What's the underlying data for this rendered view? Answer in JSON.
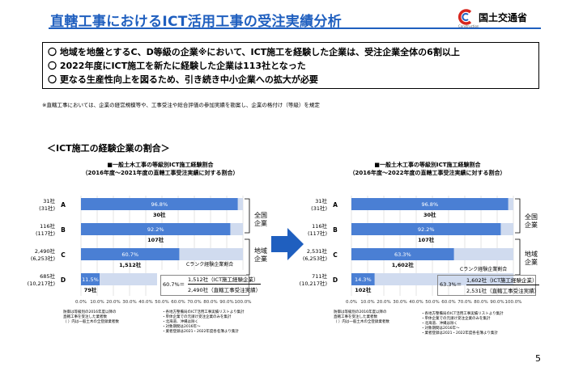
{
  "header": {
    "title": "直轄工事におけるICT活用工事の受注実績分析",
    "ministry_name": "国土交通省",
    "logo_subtext": "Construction",
    "accent_color": "#1f5fbf"
  },
  "summary": {
    "lines": [
      "〇 地域を地盤とするC、D等級の企業※において、ICT施工を経験した企業は、受注企業全体の6割以上",
      "〇 2022年度にICT施工を新たに経験した企業は113社となった",
      "〇 更なる生産性向上を図るため、引き続き中小企業への拡大が必要"
    ]
  },
  "footnote": "※直轄工事においては、企業の経営規模等や、工事受注や総合評価の参加実績を勘案し、企業の格付け（等級）を規定",
  "section_heading": "＜ICT施工の経験企業の割合＞",
  "charts_meta": {
    "left": {
      "title_line1": "■一般土木工事の等級別ICT施工経験割合",
      "title_line2": "（2016年度～2021年度の直轄工事受注実績に対する割合）",
      "legend_label": "Cランク経験企業割合",
      "frac_value": "60.7%＝",
      "frac_num": "1,512社（ICT施工経験企業）",
      "frac_den": "2,490社（直轄工事受注実績）",
      "bracket_national": "全国\n企業",
      "bracket_regional": "地域\n企業",
      "notes_left": [
        "防御は等級別の2016年度以降の",
        "直轄工事を受注した業者数",
        "（ ）内は一般土木の全登録業者数"
      ],
      "notes_right": [
        "・各地方整備局のICT活用工事実績リストより集計",
        "・単体企業での元請け受注企業のみを集計",
        "・北海道、沖縄は除く",
        "・対象期間は2016年～",
        "・業者登録は2021・2022年度各名簿より集計"
      ]
    },
    "right": {
      "title_line1": "■一般土木工事の等級別ICT施工経験割合",
      "title_line2": "（2016年度～2022年度の直轄工事受注実績に対する割合）",
      "legend_label": "Cランク経験企業割合",
      "frac_value": "63.3%＝",
      "frac_num": "1,602社（ICT施工経験企業）",
      "frac_den": "2,531社（直轄工事受注実績）",
      "bracket_national": "全国\n企業",
      "bracket_regional": "地域\n企業",
      "notes_left": [
        "防御は等級別の2016年度以降の",
        "直轄工事を受注した業者数",
        "（ ）内は一般土木の全登録業者数"
      ],
      "notes_right": [
        "・各地方整備局のICT活用工事実績リストより集計",
        "・単体企業での元請け受注企業のみを集計",
        "・北海道、沖縄は除く",
        "・対象期間は2016年～",
        "・業者登録は2021・2022年度各名簿より集計"
      ]
    }
  },
  "chart_data": [
    {
      "type": "bar",
      "orientation": "horizontal",
      "categories": [
        "A",
        "B",
        "C",
        "D"
      ],
      "category_counts": [
        "31社\n(31社)",
        "116社\n(117社)",
        "2,490社\n(6,253社)",
        "685社\n(10,217社)"
      ],
      "values": [
        96.8,
        92.2,
        60.7,
        11.5
      ],
      "value_labels": [
        "96.8%",
        "92.2%",
        "60.7%",
        "11.5%"
      ],
      "experienced_counts": [
        "30社",
        "107社",
        "1,512社",
        "79社"
      ],
      "xlim": [
        0,
        100
      ],
      "xticks": [
        "0.0%",
        "10.0%",
        "20.0%",
        "30.0%",
        "40.0%",
        "50.0%",
        "60.0%",
        "70.0%",
        "80.0%",
        "90.0%",
        "100.0%"
      ],
      "bar_color": "#4a7fd4",
      "track_color": "#d0dbef",
      "grid": true
    },
    {
      "type": "bar",
      "orientation": "horizontal",
      "categories": [
        "A",
        "B",
        "C",
        "D"
      ],
      "category_counts": [
        "31社\n(31社)",
        "116社\n(117社)",
        "2,531社\n(6,253社)",
        "711社\n(10,217社)"
      ],
      "values": [
        96.8,
        92.2,
        63.3,
        14.3
      ],
      "value_labels": [
        "96.8%",
        "92.2%",
        "63.3%",
        "14.3%"
      ],
      "experienced_counts": [
        "30社",
        "107社",
        "1,602社",
        "102社"
      ],
      "xlim": [
        0,
        100
      ],
      "xticks": [
        "0.0%",
        "10.0%",
        "20.0%",
        "30.0%",
        "40.0%",
        "50.0%",
        "60.0%",
        "70.0%",
        "80.0%",
        "90.0%",
        "100.0%"
      ],
      "bar_color": "#4a7fd4",
      "track_color": "#d0dbef",
      "grid": true
    }
  ],
  "page_number": "5"
}
